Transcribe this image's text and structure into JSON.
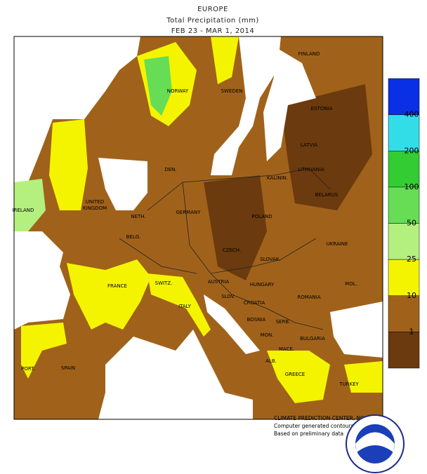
{
  "header": {
    "title": "EUROPE",
    "subtitle": "Total Precipitation (mm)",
    "date": "FEB 23 - MAR  1, 2014"
  },
  "legend": {
    "ticks": [
      400,
      200,
      100,
      50,
      25,
      10,
      1
    ],
    "colors": [
      "#0a30e6",
      "#33dde8",
      "#33cc33",
      "#66dd55",
      "#b4f07e",
      "#f4f400",
      "#a0621a",
      "#6b3a0e"
    ]
  },
  "map": {
    "labels": [
      "FINLAND",
      "NORWAY",
      "SWEDEN",
      "ESTONIA",
      "LATVIA",
      "DEN.",
      "LITHUANIA",
      "KALININ.",
      "IRELAND",
      "UNITED",
      "KINGDOM",
      "BELARUS",
      "GERMANY",
      "POLAND",
      "NETH.",
      "BELG.",
      "UKRAINE",
      "CZECH.",
      "SLOVAK.",
      "FRANCE",
      "SWITZ.",
      "AUSTRIA",
      "HUNGARY",
      "MOL.",
      "ROMANIA",
      "SLOV.",
      "CROATIA",
      "ITALY",
      "BOSNIA",
      "SERB.",
      "MON.",
      "BULGARIA",
      "MACE.",
      "ALB.",
      "PORT.",
      "SPAIN",
      "GREECE",
      "TURKEY"
    ]
  },
  "credits": [
    "CLIMATE PREDICTION CENTER, NOAA",
    "Computer generated contours",
    "Based on preliminary data"
  ],
  "logo": "NOAA"
}
